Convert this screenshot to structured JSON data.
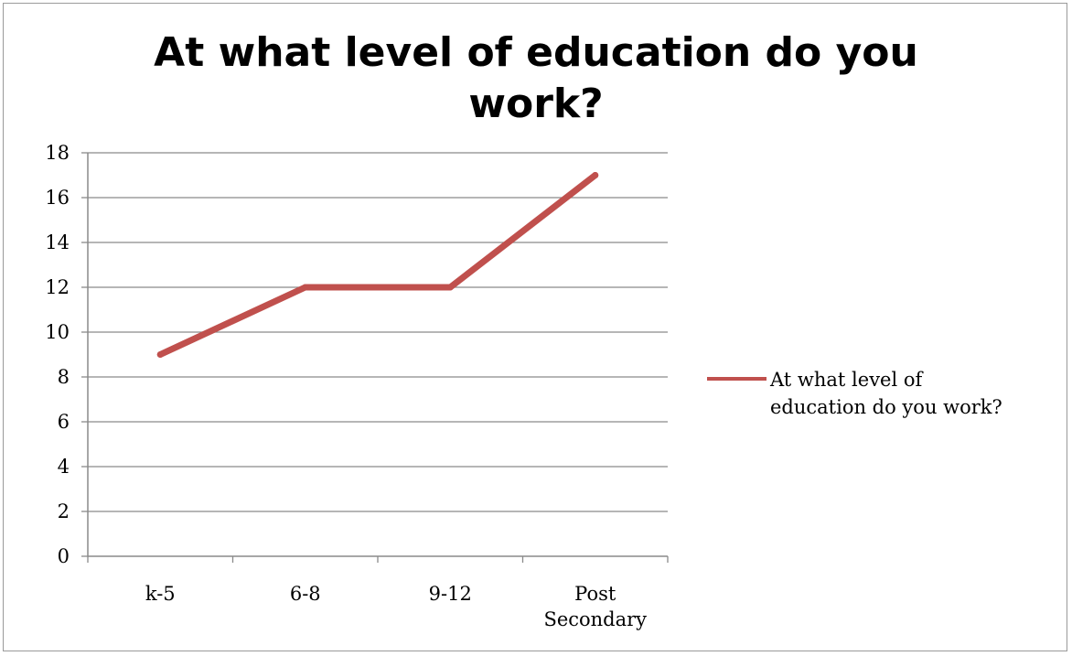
{
  "chart_data": {
    "type": "line",
    "title_lines": [
      "At what level of education do you",
      "work?"
    ],
    "categories": [
      [
        "k-5"
      ],
      [
        "6-8"
      ],
      [
        "9-12"
      ],
      [
        "Post",
        "Secondary"
      ]
    ],
    "series": [
      {
        "name_lines": [
          "At what level of",
          "education do you work?"
        ],
        "values": [
          9,
          12,
          12,
          17
        ]
      }
    ],
    "ylim": [
      0,
      18
    ],
    "yticks": [
      0,
      2,
      4,
      6,
      8,
      10,
      12,
      14,
      16,
      18
    ],
    "grid": true,
    "legend_position": "right",
    "line_color": "#c0504d"
  }
}
